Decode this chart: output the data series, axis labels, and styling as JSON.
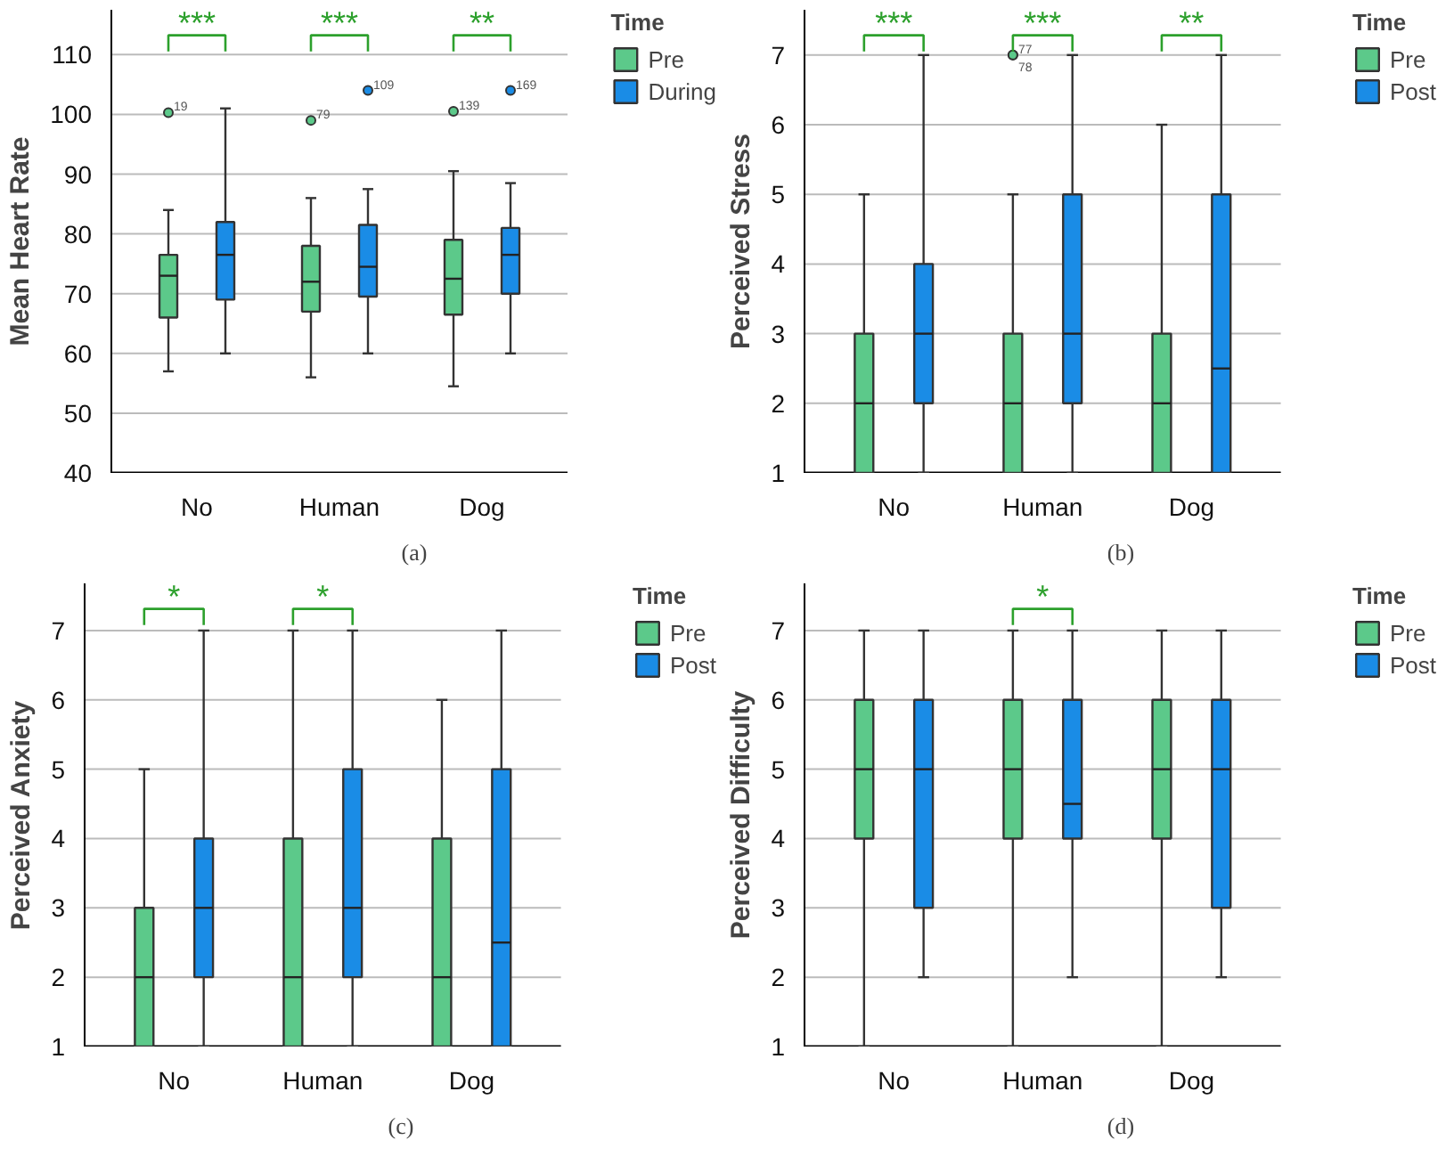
{
  "chart_data": [
    {
      "type": "box",
      "subtitle": "(a)",
      "ylabel": "Mean Heart Rate",
      "legend_title": "Time",
      "categories": [
        "No",
        "Human",
        "Dog"
      ],
      "ylim": [
        40,
        117.5
      ],
      "yticks": [
        40,
        50,
        60,
        70,
        80,
        90,
        100,
        110
      ],
      "grid": "y",
      "legend": "right",
      "series": [
        {
          "name": "Pre",
          "color": "#5cc98a",
          "boxes": [
            {
              "low": 57,
              "q1": 66,
              "median": 73,
              "q3": 76.5,
              "high": 84,
              "outliers": [
                100.3
              ]
            },
            {
              "low": 56,
              "q1": 67,
              "median": 72,
              "q3": 78,
              "high": 86,
              "outliers": [
                99
              ]
            },
            {
              "low": 54.5,
              "q1": 66.5,
              "median": 72.5,
              "q3": 79,
              "high": 90.5,
              "outliers": [
                100.5
              ]
            }
          ]
        },
        {
          "name": "During",
          "color": "#1a8ce6",
          "boxes": [
            {
              "low": 60,
              "q1": 69,
              "median": 76.5,
              "q3": 82,
              "high": 101
            },
            {
              "low": 60,
              "q1": 69.5,
              "median": 74.5,
              "q3": 81.5,
              "high": 87.5,
              "outliers": [
                104
              ]
            },
            {
              "low": 60,
              "q1": 70,
              "median": 76.5,
              "q3": 81,
              "high": 88.5,
              "outliers": [
                104
              ]
            }
          ]
        }
      ],
      "annotations": [
        "***",
        "***",
        "**",
        "19",
        "79",
        "109",
        "139",
        "169"
      ]
    },
    {
      "type": "box",
      "subtitle": "(b)",
      "ylabel": "Perceived Stress",
      "legend_title": "Time",
      "categories": [
        "No",
        "Human",
        "Dog"
      ],
      "ylim": [
        1,
        7.65
      ],
      "yticks": [
        1,
        2,
        3,
        4,
        5,
        6,
        7
      ],
      "grid": "y",
      "legend": "right",
      "series": [
        {
          "name": "Pre",
          "color": "#5cc98a",
          "boxes": [
            {
              "low": 1,
              "q1": 1,
              "median": 2,
              "q3": 3,
              "high": 5
            },
            {
              "low": 1,
              "q1": 1,
              "median": 2,
              "q3": 3,
              "high": 5,
              "outliers": [
                7,
                7
              ]
            },
            {
              "low": 1,
              "q1": 1,
              "median": 2,
              "q3": 3,
              "high": 6
            }
          ]
        },
        {
          "name": "Post",
          "color": "#1a8ce6",
          "boxes": [
            {
              "low": 1,
              "q1": 2,
              "median": 3,
              "q3": 4,
              "high": 7
            },
            {
              "low": 1,
              "q1": 2,
              "median": 3,
              "q3": 5,
              "high": 7
            },
            {
              "low": 1,
              "q1": 1,
              "median": 2.5,
              "q3": 5,
              "high": 7
            }
          ]
        }
      ],
      "annotations": [
        "***",
        "***",
        "**",
        "77",
        "78"
      ]
    },
    {
      "type": "box",
      "subtitle": "(c)",
      "ylabel": "Perceived Anxiety",
      "legend_title": "Time",
      "categories": [
        "No",
        "Human",
        "Dog"
      ],
      "ylim": [
        1,
        7.68
      ],
      "yticks": [
        1,
        2,
        3,
        4,
        5,
        6,
        7
      ],
      "grid": "y",
      "legend": "right",
      "series": [
        {
          "name": "Pre",
          "color": "#5cc98a",
          "boxes": [
            {
              "low": 1,
              "q1": 1,
              "median": 2,
              "q3": 3,
              "high": 5
            },
            {
              "low": 1,
              "q1": 1,
              "median": 2,
              "q3": 4,
              "high": 7
            },
            {
              "low": 1,
              "q1": 1,
              "median": 2,
              "q3": 4,
              "high": 6
            }
          ]
        },
        {
          "name": "Post",
          "color": "#1a8ce6",
          "boxes": [
            {
              "low": 1,
              "q1": 2,
              "median": 3,
              "q3": 4,
              "high": 7
            },
            {
              "low": 1,
              "q1": 2,
              "median": 3,
              "q3": 5,
              "high": 7
            },
            {
              "low": 1,
              "q1": 1,
              "median": 2.5,
              "q3": 5,
              "high": 7
            }
          ]
        }
      ],
      "annotations": [
        "*",
        "*"
      ]
    },
    {
      "type": "box",
      "subtitle": "(d)",
      "ylabel": "Perceived Difficulty",
      "legend_title": "Time",
      "categories": [
        "No",
        "Human",
        "Dog"
      ],
      "ylim": [
        1,
        7.68
      ],
      "yticks": [
        1,
        2,
        3,
        4,
        5,
        6,
        7
      ],
      "grid": "y",
      "legend": "right",
      "series": [
        {
          "name": "Pre",
          "color": "#5cc98a",
          "boxes": [
            {
              "low": 1,
              "q1": 4,
              "median": 5,
              "q3": 6,
              "high": 7
            },
            {
              "low": 1,
              "q1": 4,
              "median": 5,
              "q3": 6,
              "high": 7
            },
            {
              "low": 1,
              "q1": 4,
              "median": 5,
              "q3": 6,
              "high": 7
            }
          ]
        },
        {
          "name": "Post",
          "color": "#1a8ce6",
          "boxes": [
            {
              "low": 2,
              "q1": 3,
              "median": 5,
              "q3": 6,
              "high": 7
            },
            {
              "low": 2,
              "q1": 4,
              "median": 4.5,
              "q3": 6,
              "high": 7
            },
            {
              "low": 2,
              "q1": 3,
              "median": 5,
              "q3": 6,
              "high": 7
            }
          ]
        }
      ],
      "annotations": [
        "*"
      ]
    }
  ]
}
